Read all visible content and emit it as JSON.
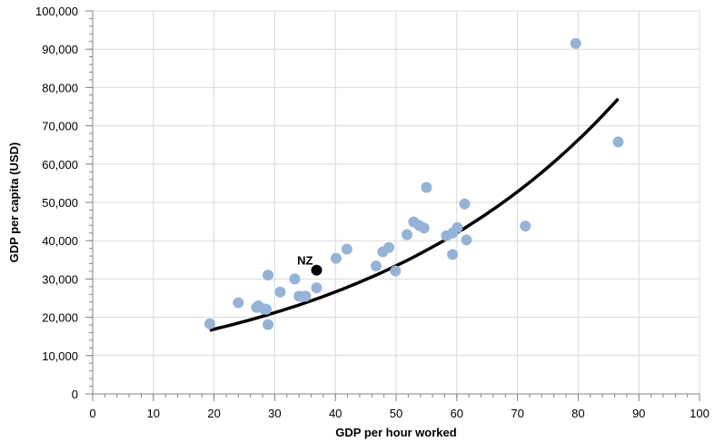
{
  "chart_data": {
    "type": "scatter",
    "title": "",
    "xlabel": "GDP per hour worked",
    "ylabel": "GDP per capita (USD)",
    "xlim": [
      0,
      100
    ],
    "ylim": [
      0,
      100000
    ],
    "x_ticks": [
      0,
      10,
      20,
      30,
      40,
      50,
      60,
      70,
      80,
      90,
      100
    ],
    "x_tick_labels": [
      "0",
      "10",
      "20",
      "30",
      "40",
      "50",
      "60",
      "70",
      "80",
      "90",
      "100"
    ],
    "y_ticks": [
      0,
      10000,
      20000,
      30000,
      40000,
      50000,
      60000,
      70000,
      80000,
      90000,
      100000
    ],
    "y_tick_labels": [
      "0",
      "10,000",
      "20,000",
      "30,000",
      "40,000",
      "50,000",
      "60,000",
      "70,000",
      "80,000",
      "90,000",
      "100,000"
    ],
    "grid": true,
    "colors": {
      "points": "#95b3d7",
      "highlight": "#000000",
      "trend": "#000000",
      "grid": "#d9d9d9",
      "axis": "#868686"
    },
    "points": [
      {
        "x": 19.3,
        "y": 18300
      },
      {
        "x": 24.0,
        "y": 23800
      },
      {
        "x": 27.0,
        "y": 22600
      },
      {
        "x": 27.3,
        "y": 23000
      },
      {
        "x": 28.2,
        "y": 22200
      },
      {
        "x": 28.6,
        "y": 22100
      },
      {
        "x": 28.9,
        "y": 18100
      },
      {
        "x": 28.9,
        "y": 31000
      },
      {
        "x": 30.9,
        "y": 26600
      },
      {
        "x": 33.3,
        "y": 30000
      },
      {
        "x": 34.0,
        "y": 25500
      },
      {
        "x": 34.6,
        "y": 25400
      },
      {
        "x": 35.1,
        "y": 25500
      },
      {
        "x": 36.9,
        "y": 27700
      },
      {
        "x": 40.1,
        "y": 35400
      },
      {
        "x": 41.9,
        "y": 37800
      },
      {
        "x": 46.7,
        "y": 33400
      },
      {
        "x": 47.8,
        "y": 37100
      },
      {
        "x": 48.8,
        "y": 38200
      },
      {
        "x": 49.9,
        "y": 32100
      },
      {
        "x": 51.8,
        "y": 41600
      },
      {
        "x": 52.9,
        "y": 44900
      },
      {
        "x": 53.8,
        "y": 44000
      },
      {
        "x": 54.6,
        "y": 43300
      },
      {
        "x": 55.0,
        "y": 53900
      },
      {
        "x": 58.3,
        "y": 41300
      },
      {
        "x": 59.3,
        "y": 42000
      },
      {
        "x": 59.3,
        "y": 36400
      },
      {
        "x": 60.1,
        "y": 43400
      },
      {
        "x": 61.3,
        "y": 49600
      },
      {
        "x": 61.6,
        "y": 40200
      },
      {
        "x": 71.3,
        "y": 43800
      },
      {
        "x": 79.6,
        "y": 91500
      },
      {
        "x": 86.6,
        "y": 65800
      }
    ],
    "highlight": {
      "label": "NZ",
      "x": 36.9,
      "y": 32300
    },
    "trendline": {
      "type": "exponential",
      "x_range": [
        19.3,
        86.6
      ],
      "a": 10700,
      "b": 0.0228
    }
  }
}
